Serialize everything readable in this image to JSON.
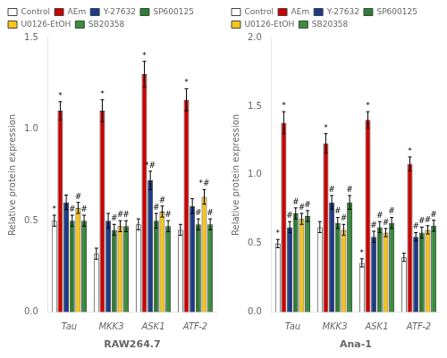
{
  "chart_data": [
    {
      "type": "bar",
      "xlabel": "RAW264.7",
      "ylabel": "Relative protein expression",
      "categories": [
        "Tau",
        "MKK3",
        "ASK1",
        "ATF-2"
      ],
      "series": [
        {
          "name": "Control",
          "color": "#ffffff",
          "values": [
            0.5,
            0.32,
            0.48,
            0.45
          ],
          "errors": [
            0.03,
            0.03,
            0.03,
            0.03
          ],
          "annotations": [
            "*",
            null,
            null,
            null
          ]
        },
        {
          "name": "AEm",
          "color": "#cc0000",
          "values": [
            1.1,
            1.1,
            1.3,
            1.16
          ],
          "errors": [
            0.05,
            0.06,
            0.07,
            0.06
          ],
          "annotations": [
            "*",
            "*",
            "*",
            "*"
          ]
        },
        {
          "name": "Y-27632",
          "color": "#1a3a8c",
          "values": [
            0.6,
            0.5,
            0.72,
            0.58
          ],
          "errors": [
            0.04,
            0.04,
            0.05,
            0.04
          ],
          "annotations": [
            null,
            null,
            "*#",
            null
          ]
        },
        {
          "name": "SP600125",
          "color": "#2e7d32",
          "values": [
            0.5,
            0.45,
            0.5,
            0.48
          ],
          "errors": [
            0.03,
            0.03,
            0.04,
            0.03
          ],
          "annotations": [
            "#",
            "#",
            "#",
            "#"
          ]
        },
        {
          "name": "U0126-EtOH",
          "color": "#f5c518",
          "values": [
            0.57,
            0.47,
            0.55,
            0.63
          ],
          "errors": [
            0.03,
            0.03,
            0.03,
            0.04
          ],
          "annotations": [
            "#",
            "#",
            "#",
            "*#"
          ]
        },
        {
          "name": "SB20358",
          "color": "#388e3c",
          "values": [
            0.5,
            0.47,
            0.47,
            0.48
          ],
          "errors": [
            0.03,
            0.03,
            0.03,
            0.03
          ],
          "annotations": [
            "#",
            "#",
            "#",
            "#"
          ]
        }
      ],
      "ylim": [
        0.0,
        1.5
      ],
      "yticks": [
        {
          "value": 0.0,
          "label": "0.0"
        },
        {
          "value": 0.5,
          "label": "0.5"
        },
        {
          "value": 1.0,
          "label": "1.0"
        },
        {
          "value": 1.5,
          "label": "1.5"
        }
      ],
      "grid": false,
      "legend": "upper left"
    },
    {
      "type": "bar",
      "xlabel": "Ana-1",
      "ylabel": "Relative protein expression",
      "categories": [
        "Tau",
        "MKK3",
        "ASK1",
        "ATF-2"
      ],
      "series": [
        {
          "name": "Control",
          "color": "#ffffff",
          "values": [
            0.5,
            0.62,
            0.36,
            0.4
          ],
          "errors": [
            0.03,
            0.04,
            0.03,
            0.03
          ],
          "annotations": [
            "*",
            null,
            "*",
            null
          ]
        },
        {
          "name": "AEm",
          "color": "#cc0000",
          "values": [
            1.38,
            1.23,
            1.4,
            1.08
          ],
          "errors": [
            0.08,
            0.07,
            0.06,
            0.05
          ],
          "annotations": [
            "*",
            "*",
            "*",
            "*"
          ]
        },
        {
          "name": "Y-27632",
          "color": "#1a3a8c",
          "values": [
            0.62,
            0.8,
            0.55,
            0.55
          ],
          "errors": [
            0.04,
            0.05,
            0.04,
            0.03
          ],
          "annotations": [
            "#",
            "#",
            "#",
            "#"
          ]
        },
        {
          "name": "SP600125",
          "color": "#2e7d32",
          "values": [
            0.72,
            0.65,
            0.62,
            0.58
          ],
          "errors": [
            0.04,
            0.04,
            0.04,
            0.04
          ],
          "annotations": [
            "#",
            "#",
            "#",
            "#"
          ]
        },
        {
          "name": "U0126-EtOH",
          "color": "#f5c518",
          "values": [
            0.68,
            0.6,
            0.58,
            0.6
          ],
          "errors": [
            0.04,
            0.04,
            0.03,
            0.03
          ],
          "annotations": [
            "#",
            "#",
            "#",
            "#"
          ]
        },
        {
          "name": "SB20358",
          "color": "#388e3c",
          "values": [
            0.7,
            0.8,
            0.65,
            0.63
          ],
          "errors": [
            0.04,
            0.05,
            0.04,
            0.04
          ],
          "annotations": [
            "#",
            "#",
            "#",
            "#"
          ]
        }
      ],
      "ylim": [
        0.0,
        2.0
      ],
      "yticks": [
        {
          "value": 0.0,
          "label": "0.0"
        },
        {
          "value": 0.5,
          "label": "0.5"
        },
        {
          "value": 1.0,
          "label": "1.0"
        },
        {
          "value": 1.5,
          "label": "1.5"
        },
        {
          "value": 2.0,
          "label": "2.0"
        }
      ],
      "grid": false,
      "legend": "upper left"
    }
  ]
}
